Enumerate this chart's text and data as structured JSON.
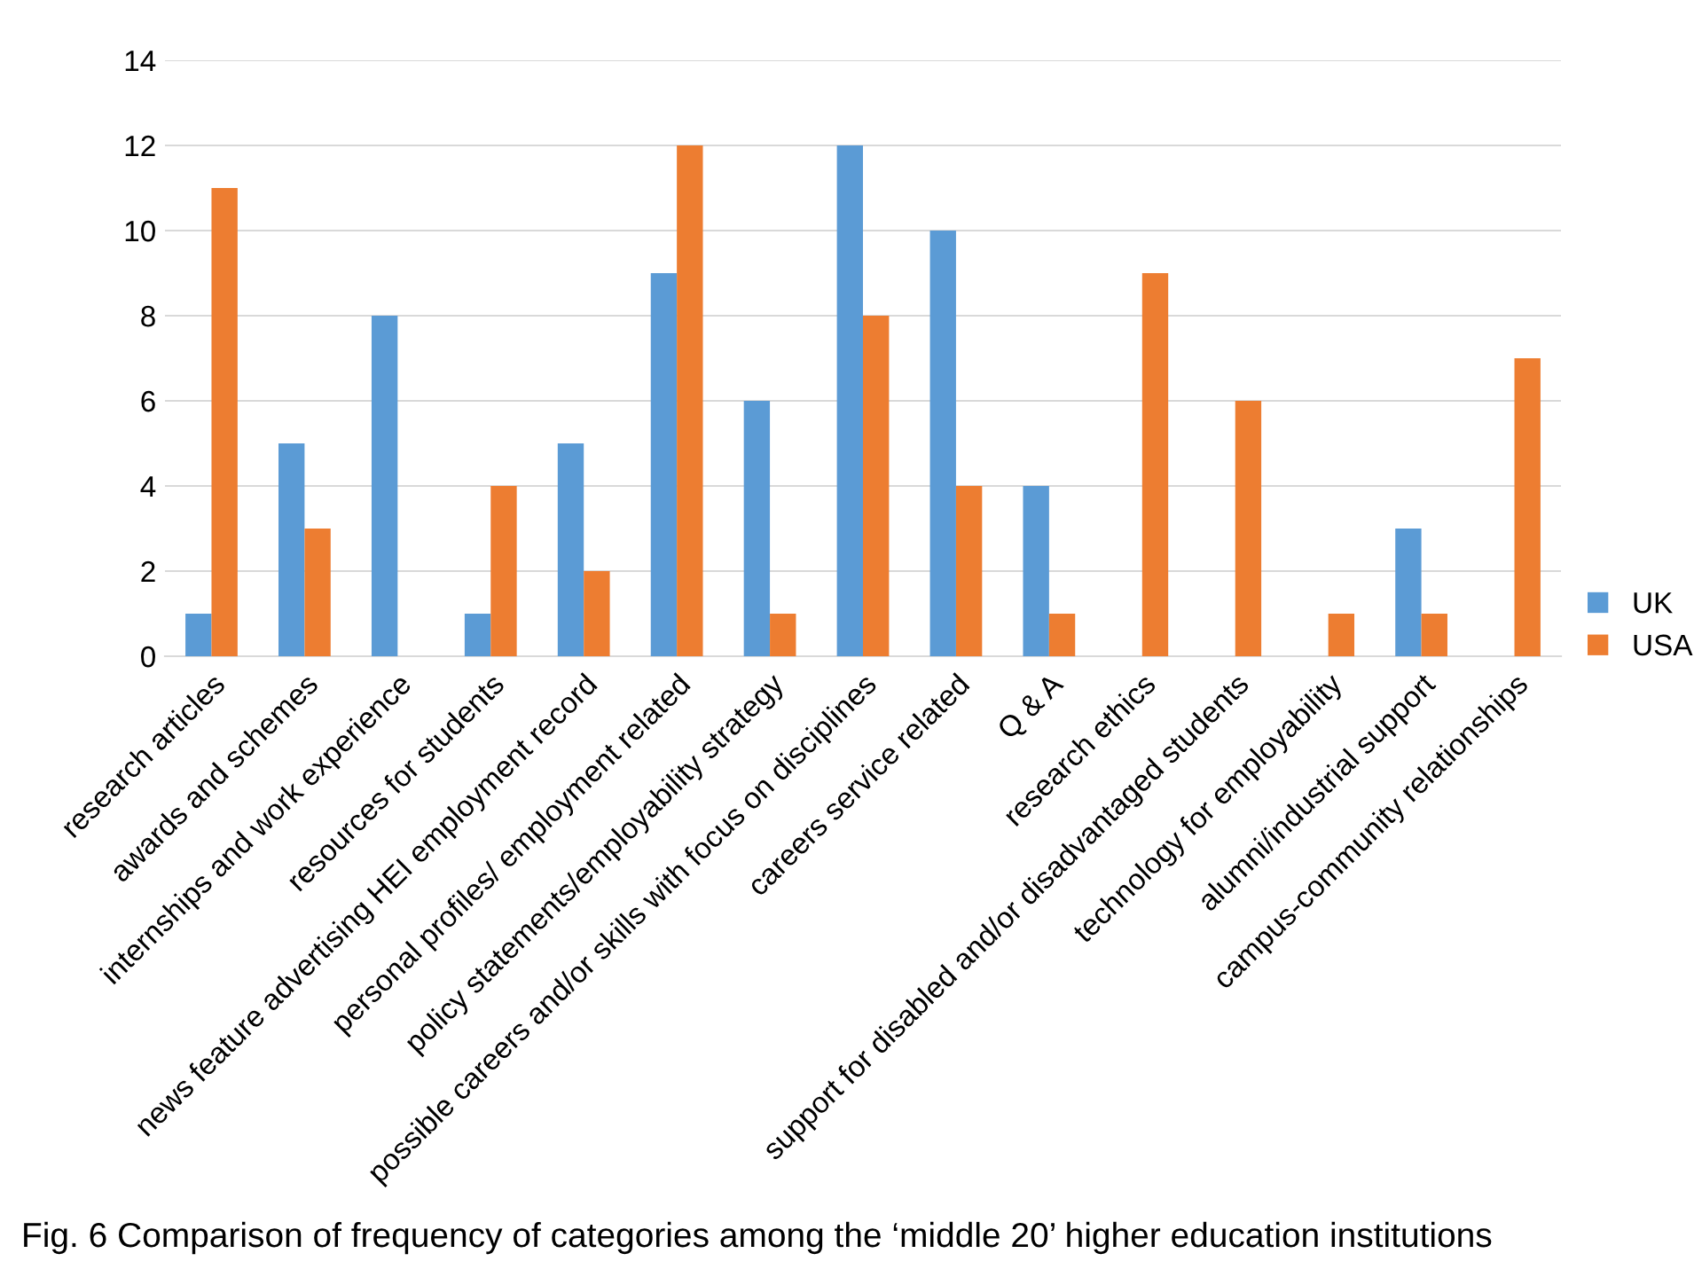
{
  "chart_data": {
    "type": "bar",
    "categories": [
      "research articles",
      "awards and schemes",
      "internships and work experience",
      "resources for students",
      "news feature advertising HEI employment record",
      "personal profiles/ employment related",
      "policy statements/employability strategy",
      "possible careers and/or skills with focus on disciplines",
      "careers service related",
      "Q & A",
      "research ethics",
      "support for disabled and/or disadvantaged students",
      "technology for employability",
      "alumni/industrial support",
      "campus-community relationships"
    ],
    "series": [
      {
        "name": "UK",
        "color": "#5b9bd5",
        "values": [
          1,
          5,
          8,
          1,
          5,
          9,
          6,
          12,
          10,
          4,
          0,
          0,
          0,
          3,
          0
        ]
      },
      {
        "name": "USA",
        "color": "#ed7d31",
        "values": [
          11,
          3,
          0,
          4,
          2,
          12,
          1,
          8,
          4,
          1,
          9,
          6,
          1,
          1,
          7
        ]
      }
    ],
    "ylim": [
      0,
      14
    ],
    "yticks": [
      0,
      2,
      4,
      6,
      8,
      10,
      12,
      14
    ],
    "grid": "y",
    "legend": "right",
    "annotations": [
      "Fig. 6 Comparison of frequency of categories among the ‘middle 20’ higher education institutions"
    ]
  }
}
